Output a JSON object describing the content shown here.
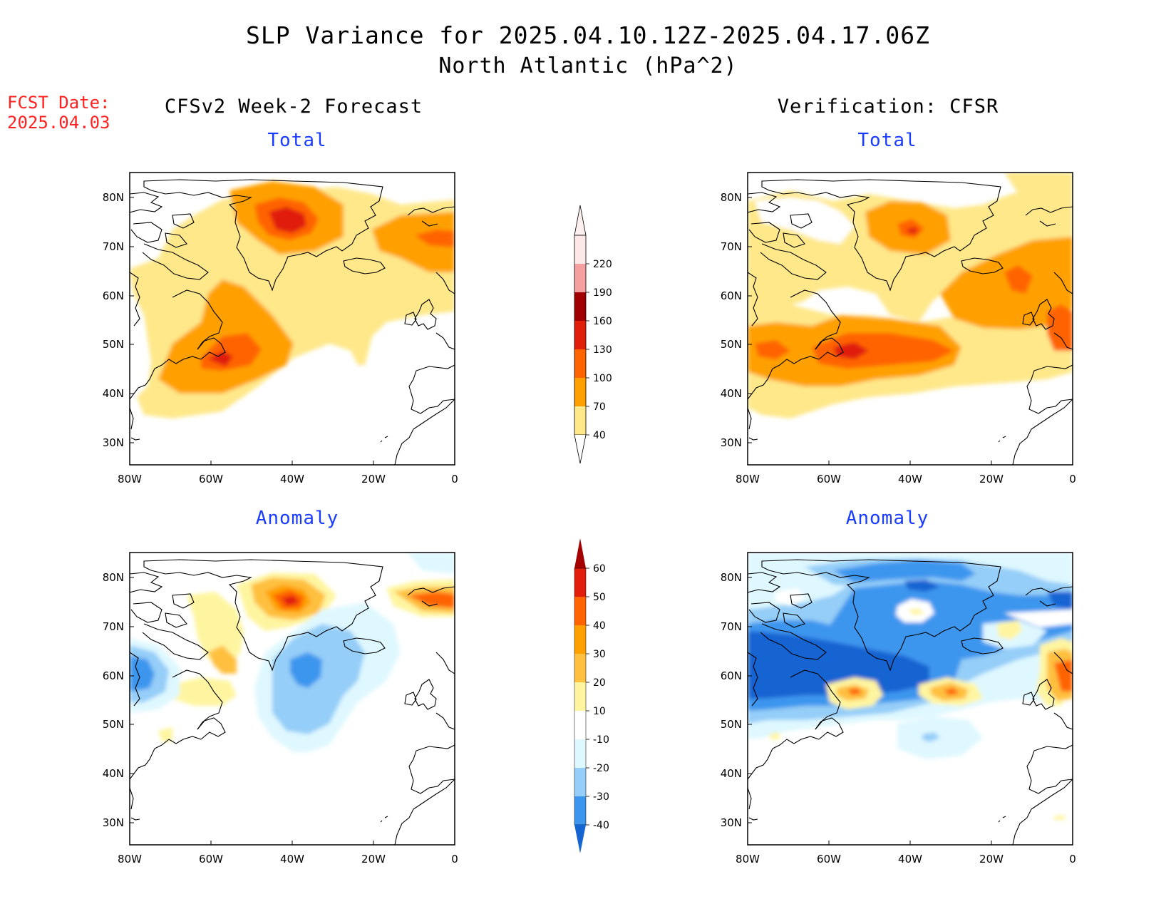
{
  "title": {
    "line1": "SLP Variance for 2025.04.10.12Z-2025.04.17.06Z",
    "line2": "North Atlantic (hPa^2)"
  },
  "fcst_date": {
    "label": "FCST Date:",
    "value": "2025.04.03"
  },
  "columns": {
    "forecast": "CFSv2 Week-2 Forecast",
    "verification": "Verification: CFSR"
  },
  "panels": {
    "total": "Total",
    "anomaly": "Anomaly"
  },
  "axes": {
    "lon_labels": [
      "80W",
      "60W",
      "40W",
      "20W",
      "0"
    ],
    "lat_labels": [
      "80N",
      "70N",
      "60N",
      "50N",
      "40N",
      "30N"
    ]
  },
  "colorbar_total": {
    "labels": [
      "220",
      "190",
      "160",
      "130",
      "100",
      "70",
      "40"
    ],
    "colors": [
      "#fde8e8",
      "#f4a0a0",
      "#a00000",
      "#e01e0a",
      "#ff6400",
      "#ffa000",
      "#ffe88a"
    ]
  },
  "colorbar_anomaly": {
    "labels": [
      "60",
      "50",
      "40",
      "30",
      "20",
      "10",
      "-10",
      "-20",
      "-30",
      "-40"
    ],
    "colors": [
      "#a50000",
      "#e01e0a",
      "#ff6400",
      "#ffa000",
      "#ffc040",
      "#fff5a0",
      "#ffffff",
      "#dff8ff",
      "#95cef8",
      "#3c96ee",
      "#1464d2"
    ]
  }
}
